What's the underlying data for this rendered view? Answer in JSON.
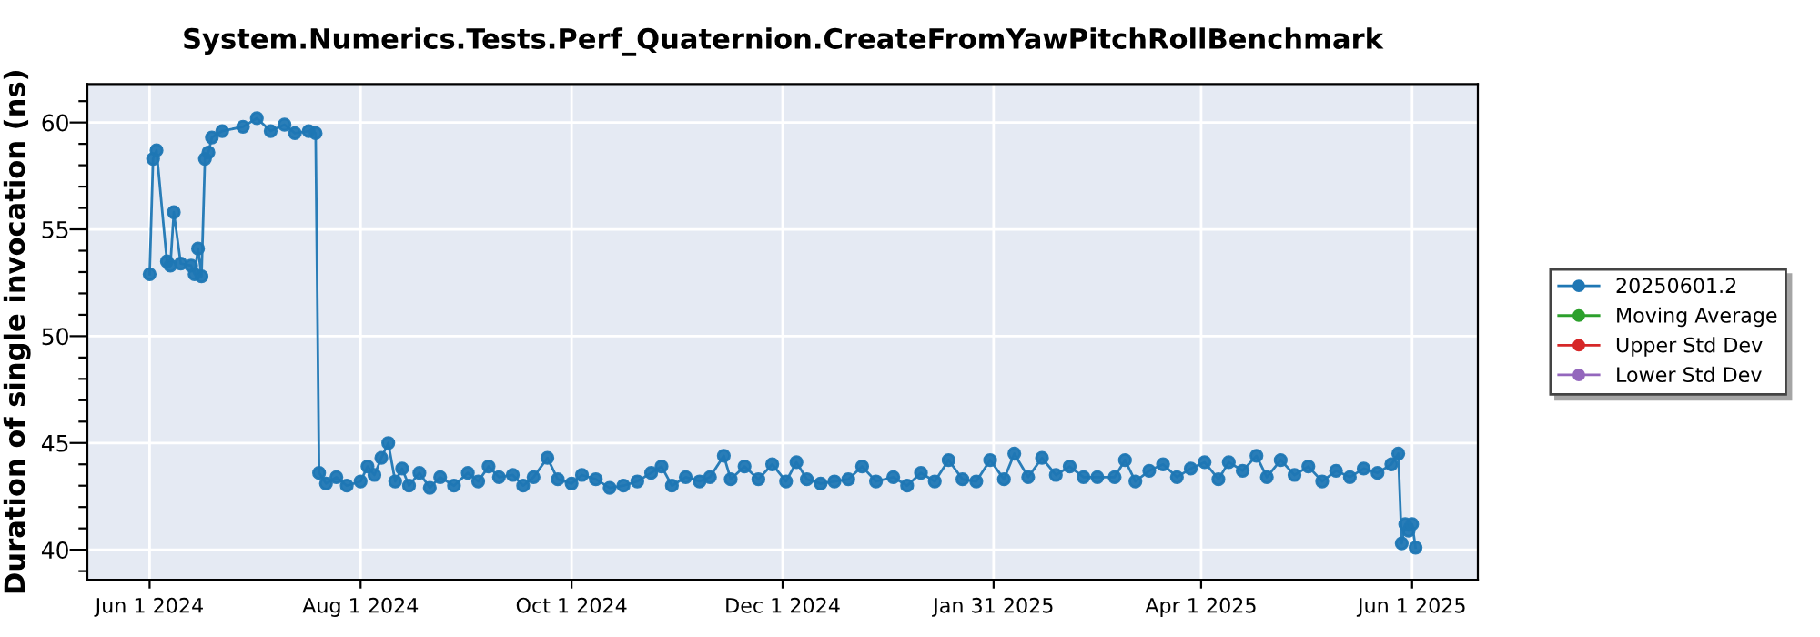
{
  "chart_data": {
    "type": "line",
    "title": "System.Numerics.Tests.Perf_Quaternion.CreateFromYawPitchRollBenchmark",
    "ylabel": "Duration of single invocation (ns)",
    "xlim": [
      "2024-05-14",
      "2025-06-20"
    ],
    "ylim": [
      38.6,
      61.8
    ],
    "xticks": [
      {
        "value": "2024-06-01",
        "label": "Jun 1 2024"
      },
      {
        "value": "2024-08-01",
        "label": "Aug 1 2024"
      },
      {
        "value": "2024-10-01",
        "label": "Oct 1 2024"
      },
      {
        "value": "2024-12-01",
        "label": "Dec 1 2024"
      },
      {
        "value": "2025-01-31",
        "label": "Jan 31 2025"
      },
      {
        "value": "2025-04-01",
        "label": "Apr 1 2025"
      },
      {
        "value": "2025-06-01",
        "label": "Jun 1 2025"
      }
    ],
    "yticks": [
      {
        "value": 39,
        "label": null
      },
      40,
      {
        "value": 41,
        "label": null
      },
      {
        "value": 42,
        "label": null
      },
      {
        "value": 43,
        "label": null
      },
      {
        "value": 44,
        "label": null
      },
      45,
      {
        "value": 46,
        "label": null
      },
      {
        "value": 47,
        "label": null
      },
      {
        "value": 48,
        "label": null
      },
      {
        "value": 49,
        "label": null
      },
      50,
      {
        "value": 51,
        "label": null
      },
      {
        "value": 52,
        "label": null
      },
      {
        "value": 53,
        "label": null
      },
      {
        "value": 54,
        "label": null
      },
      55,
      {
        "value": 56,
        "label": null
      },
      {
        "value": 57,
        "label": null
      },
      {
        "value": 58,
        "label": null
      },
      {
        "value": 59,
        "label": null
      },
      60,
      {
        "value": 61,
        "label": null
      }
    ],
    "grid": true,
    "legend": "right",
    "marker": "circle",
    "line_style": "solid",
    "series": [
      {
        "name": "20250601.2",
        "color": "#1f77b4",
        "x": [
          "2024-06-01",
          "2024-06-02",
          "2024-06-03",
          "2024-06-06",
          "2024-06-07",
          "2024-06-08",
          "2024-06-10",
          "2024-06-13",
          "2024-06-14",
          "2024-06-15",
          "2024-06-16",
          "2024-06-17",
          "2024-06-18",
          "2024-06-19",
          "2024-06-22",
          "2024-06-28",
          "2024-07-02",
          "2024-07-06",
          "2024-07-10",
          "2024-07-13",
          "2024-07-17",
          "2024-07-19",
          "2024-07-20",
          "2024-07-22",
          "2024-07-25",
          "2024-07-28",
          "2024-08-01",
          "2024-08-03",
          "2024-08-05",
          "2024-08-07",
          "2024-08-09",
          "2024-08-11",
          "2024-08-13",
          "2024-08-15",
          "2024-08-18",
          "2024-08-21",
          "2024-08-24",
          "2024-08-28",
          "2024-09-01",
          "2024-09-04",
          "2024-09-07",
          "2024-09-10",
          "2024-09-14",
          "2024-09-17",
          "2024-09-20",
          "2024-09-24",
          "2024-09-27",
          "2024-10-01",
          "2024-10-04",
          "2024-10-08",
          "2024-10-12",
          "2024-10-16",
          "2024-10-20",
          "2024-10-24",
          "2024-10-27",
          "2024-10-30",
          "2024-11-03",
          "2024-11-07",
          "2024-11-10",
          "2024-11-14",
          "2024-11-16",
          "2024-11-20",
          "2024-11-24",
          "2024-11-28",
          "2024-12-02",
          "2024-12-05",
          "2024-12-08",
          "2024-12-12",
          "2024-12-16",
          "2024-12-20",
          "2024-12-24",
          "2024-12-28",
          "2025-01-02",
          "2025-01-06",
          "2025-01-10",
          "2025-01-14",
          "2025-01-18",
          "2025-01-22",
          "2025-01-26",
          "2025-01-30",
          "2025-02-03",
          "2025-02-06",
          "2025-02-10",
          "2025-02-14",
          "2025-02-18",
          "2025-02-22",
          "2025-02-26",
          "2025-03-02",
          "2025-03-07",
          "2025-03-10",
          "2025-03-13",
          "2025-03-17",
          "2025-03-21",
          "2025-03-25",
          "2025-03-29",
          "2025-04-02",
          "2025-04-06",
          "2025-04-09",
          "2025-04-13",
          "2025-04-17",
          "2025-04-20",
          "2025-04-24",
          "2025-04-28",
          "2025-05-02",
          "2025-05-06",
          "2025-05-10",
          "2025-05-14",
          "2025-05-18",
          "2025-05-22",
          "2025-05-26",
          "2025-05-28",
          "2025-05-29",
          "2025-05-30",
          "2025-05-31",
          "2025-06-01",
          "2025-06-02"
        ],
        "values": [
          52.9,
          58.3,
          58.7,
          53.5,
          53.3,
          55.8,
          53.4,
          53.3,
          52.9,
          54.1,
          52.8,
          58.3,
          58.6,
          59.3,
          59.6,
          59.8,
          60.2,
          59.6,
          59.9,
          59.5,
          59.6,
          59.5,
          43.6,
          43.1,
          43.4,
          43.0,
          43.2,
          43.9,
          43.5,
          44.3,
          45.0,
          43.2,
          43.8,
          43.0,
          43.6,
          42.9,
          43.4,
          43.0,
          43.6,
          43.2,
          43.9,
          43.4,
          43.5,
          43.0,
          43.4,
          44.3,
          43.3,
          43.1,
          43.5,
          43.3,
          42.9,
          43.0,
          43.2,
          43.6,
          43.9,
          43.0,
          43.4,
          43.2,
          43.4,
          44.4,
          43.3,
          43.9,
          43.3,
          44.0,
          43.2,
          44.1,
          43.3,
          43.1,
          43.2,
          43.3,
          43.9,
          43.2,
          43.4,
          43.0,
          43.6,
          43.2,
          44.2,
          43.3,
          43.2,
          44.2,
          43.3,
          44.5,
          43.4,
          44.3,
          43.5,
          43.9,
          43.4,
          43.4,
          43.4,
          44.2,
          43.2,
          43.7,
          44.0,
          43.4,
          43.8,
          44.1,
          43.3,
          44.1,
          43.7,
          44.4,
          43.4,
          44.2,
          43.5,
          43.9,
          43.2,
          43.7,
          43.4,
          43.8,
          43.6,
          44.0,
          44.5,
          40.3,
          41.2,
          40.9,
          41.2,
          40.1
        ]
      },
      {
        "name": "Moving Average",
        "color": "#2ca02c"
      },
      {
        "name": "Upper Std Dev",
        "color": "#d62728"
      },
      {
        "name": "Lower Std Dev",
        "color": "#9467bd"
      }
    ]
  }
}
